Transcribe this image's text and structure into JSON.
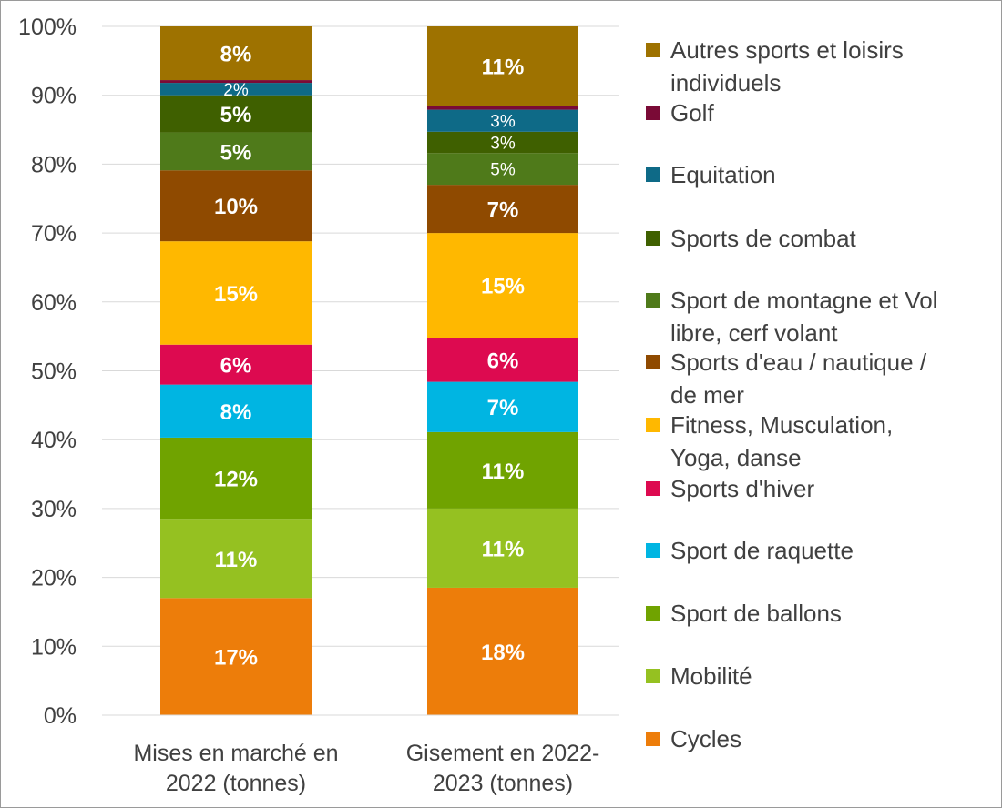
{
  "chart_data": {
    "type": "bar",
    "stacked": true,
    "percent": true,
    "title": "",
    "xlabel": "",
    "ylabel": "",
    "ylim": [
      0,
      100
    ],
    "y_ticks": [
      "0%",
      "10%",
      "20%",
      "30%",
      "40%",
      "50%",
      "60%",
      "70%",
      "80%",
      "90%",
      "100%"
    ],
    "grid": true,
    "legend_position": "right",
    "categories": [
      [
        "Mises en marché en",
        "2022  (tonnes)"
      ],
      [
        "Gisement en 2022-",
        "2023 (tonnes)"
      ]
    ],
    "series": [
      {
        "name": "Cycles",
        "color": "#ed7d0a",
        "values": [
          17,
          18.5
        ],
        "labels": [
          "17%",
          "18%"
        ]
      },
      {
        "name": "Mobilité",
        "color": "#95c121",
        "values": [
          11.5,
          11.5
        ],
        "labels": [
          "11%",
          "11%"
        ]
      },
      {
        "name": "Sport de ballons",
        "color": "#70a300",
        "values": [
          11.8,
          11.1
        ],
        "labels": [
          "12%",
          "11%"
        ]
      },
      {
        "name": "Sport de raquette",
        "color": "#00b5e2",
        "values": [
          7.7,
          7.3
        ],
        "labels": [
          "8%",
          "7%"
        ]
      },
      {
        "name": "Sports d'hiver",
        "color": "#dd0a50",
        "values": [
          5.8,
          6.4
        ],
        "labels": [
          "6%",
          "6%"
        ]
      },
      {
        "name": "Fitness, Musculation, Yoga, danse",
        "color": "#ffb800",
        "values": [
          15,
          15.2
        ],
        "labels": [
          "15%",
          "15%"
        ]
      },
      {
        "name": "Sports d'eau / nautique / de mer",
        "color": "#8f4a00",
        "values": [
          10.3,
          7
        ],
        "labels": [
          "10%",
          "7%"
        ]
      },
      {
        "name": "Sport de montagne et Vol libre, cerf volant",
        "color": "#4f7a1a",
        "values": [
          5.5,
          4.6
        ],
        "labels": [
          "5%",
          "5%"
        ]
      },
      {
        "name": "Sports de combat",
        "color": "#3f6000",
        "values": [
          5.4,
          3.1
        ],
        "labels": [
          "5%",
          "3%"
        ]
      },
      {
        "name": "Equitation",
        "color": "#0e6a87",
        "values": [
          1.8,
          3.2
        ],
        "labels": [
          "2%",
          "3%"
        ]
      },
      {
        "name": "Golf",
        "color": "#7a0a36",
        "values": [
          0.4,
          0.6
        ],
        "labels": [
          "",
          ""
        ]
      },
      {
        "name": "Autres sports et loisirs individuels",
        "color": "#9e7200",
        "values": [
          7.8,
          11.5
        ],
        "labels": [
          "8%",
          "11%"
        ]
      }
    ],
    "legend_order": [
      "Autres sports et loisirs individuels",
      "Golf",
      "Equitation",
      "Sports de combat",
      "Sport de montagne et Vol libre, cerf volant",
      "Sports d'eau / nautique / de mer",
      "Fitness, Musculation, Yoga, danse",
      "Sports d'hiver",
      "Sport de raquette",
      "Sport de ballons",
      "Mobilité",
      "Cycles"
    ],
    "legend_lines": [
      [
        "Autres sports et loisirs",
        "individuels"
      ],
      [
        "Golf"
      ],
      [
        "Equitation"
      ],
      [
        "Sports de combat"
      ],
      [
        "Sport de montagne et Vol",
        "libre, cerf volant"
      ],
      [
        "Sports d'eau / nautique /",
        "de mer"
      ],
      [
        "Fitness, Musculation,",
        "Yoga, danse"
      ],
      [
        "Sports d'hiver"
      ],
      [
        "Sport de raquette"
      ],
      [
        "Sport de ballons"
      ],
      [
        "Mobilité"
      ],
      [
        "Cycles"
      ]
    ]
  }
}
